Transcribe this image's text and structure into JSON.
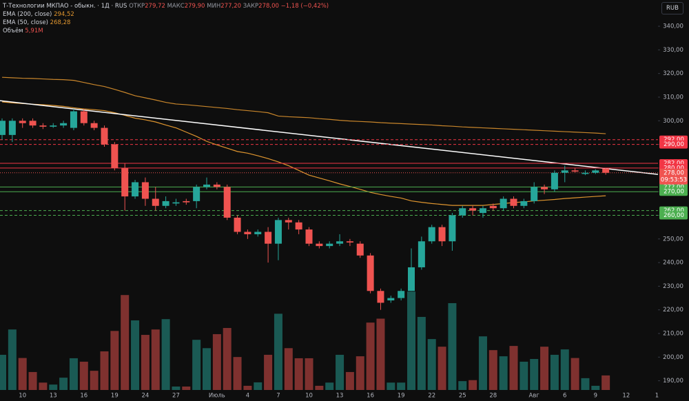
{
  "chart_data": {
    "type": "candlestick",
    "header": {
      "symbol": "Т-Технологии МКПАО - обыкн. · 1Д · RUS",
      "open_label": "ОТКР",
      "open": "279,72",
      "high_label": "МАКС",
      "high": "279,90",
      "low_label": "МИН",
      "low": "277,20",
      "close_label": "ЗАКР",
      "close": "278,00",
      "change": "−1,18 (−0,42%)"
    },
    "currency": "RUB",
    "up_color": "#26a69a",
    "down_color": "#ef5350",
    "categories": [
      null,
      null,
      "10",
      null,
      null,
      "13",
      null,
      null,
      "16",
      null,
      null,
      "19",
      null,
      null,
      "24",
      null,
      null,
      "27",
      null,
      null,
      null,
      "Июль",
      null,
      null,
      "4",
      null,
      null,
      "7",
      null,
      null,
      "10",
      null,
      null,
      "13",
      null,
      null,
      "16",
      null,
      null,
      "19",
      null,
      null,
      "22",
      null,
      null,
      "25",
      null,
      null,
      "28",
      null,
      null,
      null,
      "Авг",
      null,
      null,
      "6",
      null,
      null,
      "9",
      null,
      null,
      "12",
      null,
      null,
      "1"
    ],
    "open": [
      294,
      294,
      300,
      300,
      298,
      297.5,
      298,
      297,
      304,
      299,
      297,
      290,
      280,
      268,
      274,
      267,
      264,
      265,
      266,
      266,
      272,
      273,
      272,
      259,
      253,
      252,
      253,
      248,
      258,
      257,
      254,
      248,
      247,
      248,
      249,
      248,
      243,
      228,
      224,
      225,
      228,
      238,
      249,
      255,
      249,
      260,
      263,
      261,
      264,
      263,
      267,
      264,
      266,
      272,
      271,
      278,
      279,
      277.5,
      278,
      279.72,
      null,
      null,
      null,
      null,
      null
    ],
    "high": [
      301,
      301,
      301,
      301,
      299,
      299,
      300,
      305,
      305,
      300,
      298,
      291,
      282,
      275,
      276,
      272,
      268,
      267,
      267,
      273,
      276,
      274,
      273,
      260,
      254,
      254,
      255,
      259,
      259,
      258,
      255,
      249,
      249,
      252,
      250,
      249,
      244,
      229,
      226,
      229,
      246,
      251,
      256,
      256,
      261,
      264,
      264,
      264,
      265,
      268,
      268,
      267,
      274,
      273,
      279,
      281,
      280,
      279,
      279.5,
      279.9,
      null,
      null,
      null,
      null,
      null
    ],
    "low": [
      292,
      291,
      297,
      297,
      296.5,
      297,
      297,
      296,
      298,
      296,
      289,
      279,
      262,
      267,
      264,
      262,
      263,
      264,
      264.5,
      263,
      271,
      271,
      258,
      252,
      250,
      251,
      240,
      241,
      254,
      252,
      247,
      246,
      246,
      247,
      247,
      242,
      227,
      220,
      223,
      224,
      228,
      237,
      248,
      247,
      245,
      259,
      260,
      259,
      262,
      262,
      263,
      263,
      265,
      269,
      270,
      274,
      278,
      277,
      277.5,
      277.2,
      null,
      null,
      null,
      null,
      null
    ],
    "close": [
      300,
      300,
      299,
      298,
      297.5,
      298,
      299,
      304,
      299,
      297,
      290,
      280,
      268,
      274,
      267,
      264,
      266,
      265.5,
      265.5,
      272,
      273,
      272,
      259,
      253,
      252,
      253,
      248,
      258,
      257,
      254,
      248,
      247,
      248,
      249,
      248.5,
      243,
      228,
      223,
      225,
      228,
      238,
      249,
      255,
      249,
      260,
      263,
      262,
      263,
      263,
      267,
      264,
      266,
      272,
      271,
      278,
      279,
      278.5,
      278,
      279,
      278,
      null,
      null,
      null,
      null,
      null
    ],
    "volume": {
      "name": "Объём",
      "value_label": "5,91M",
      "values": [
        14.3,
        24.6,
        13,
        7.3,
        3,
        2.2,
        5,
        12.9,
        11.5,
        7.8,
        15.7,
        24,
        38.6,
        28.3,
        22.4,
        24.6,
        28.8,
        1.4,
        1.4,
        20.4,
        17,
        22.7,
        25.2,
        13.4,
        1.7,
        3.1,
        14.3,
        31,
        17,
        12.9,
        12.9,
        1.7,
        3,
        14.3,
        7.3,
        13.7,
        27.4,
        29,
        3,
        3,
        40,
        29.7,
        20.7,
        17.6,
        35.3,
        3.6,
        4,
        21.8,
        16.2,
        13.7,
        17.9,
        11.5,
        12.6,
        17.6,
        14.3,
        16.5,
        13,
        4.8,
        1.7,
        5.91,
        null,
        null,
        null,
        null,
        null
      ]
    },
    "series": [
      {
        "name": "EMA (200, close)",
        "value_label": "294,52",
        "color": "#c9862b",
        "values": [
          318.4,
          318.2,
          318,
          317.9,
          317.7,
          317.5,
          317.4,
          317.1,
          316.2,
          315.3,
          314.5,
          313.3,
          312,
          310.6,
          309.7,
          308.8,
          307.8,
          307.1,
          306.8,
          306.4,
          306,
          305.6,
          305.2,
          304.7,
          304.3,
          303.9,
          303.4,
          302,
          301.7,
          301.5,
          301.3,
          300.9,
          300.6,
          300.2,
          299.9,
          299.7,
          299.5,
          299.2,
          299,
          298.8,
          298.6,
          298.4,
          298.2,
          297.9,
          297.7,
          297.4,
          297.2,
          297,
          296.8,
          296.6,
          296.4,
          296.2,
          296,
          295.8,
          295.6,
          295.4,
          295.2,
          295,
          294.8,
          294.52,
          null,
          null,
          null,
          null,
          null
        ]
      },
      {
        "name": "EMA (50, close)",
        "value_label": "268,28",
        "color": "#e0962f",
        "values": [
          308,
          307.6,
          307.3,
          307,
          306.8,
          306.5,
          306.1,
          305.5,
          305,
          304.7,
          304.3,
          303.4,
          302.3,
          301.1,
          300.4,
          299.5,
          298.2,
          297,
          295.2,
          293.4,
          291.3,
          289.8,
          288.4,
          287,
          286.3,
          285.2,
          284,
          282.6,
          281,
          279,
          277,
          275.8,
          274.6,
          273.3,
          272.2,
          271,
          269.7,
          268.8,
          268,
          267.3,
          266.1,
          265.5,
          265,
          264.6,
          264.2,
          264.2,
          264.2,
          264.2,
          264.6,
          265,
          265.4,
          265.7,
          266.1,
          266.4,
          266.7,
          267.1,
          267.4,
          267.7,
          268,
          268.28,
          null,
          null,
          null,
          null,
          null
        ]
      }
    ],
    "trendline": {
      "color": "#ffffff",
      "values": [
        308.5,
        277.3
      ]
    },
    "levels": [
      {
        "value": 292,
        "label": "292,00",
        "color": "#f23645",
        "style": "dashed"
      },
      {
        "value": 290,
        "label": "290,00",
        "color": "#f23645",
        "style": "dashed"
      },
      {
        "value": 282,
        "label": "282,00",
        "color": "#f23645",
        "style": "solid"
      },
      {
        "value": 280,
        "label": "280,00",
        "color": "#f23645",
        "style": "solid"
      },
      {
        "value": 272,
        "label": "272,00",
        "color": "#4caf50",
        "style": "solid"
      },
      {
        "value": 270,
        "label": "270,00",
        "color": "#4caf50",
        "style": "solid"
      },
      {
        "value": 262,
        "label": "262,00",
        "color": "#4caf50",
        "style": "dashed"
      },
      {
        "value": 260,
        "label": "260,00",
        "color": "#4caf50",
        "style": "dashed"
      }
    ],
    "price_tag": {
      "value": 278,
      "label": "278,00",
      "countdown": "09:53:53",
      "color": "#ef5350"
    },
    "ylim": [
      186.1,
      351.1
    ],
    "yticks": [
      {
        "value": 190,
        "label": "190,00"
      },
      {
        "value": 200,
        "label": "200,00"
      },
      {
        "value": 210,
        "label": "210,00"
      },
      {
        "value": 220,
        "label": "220,00"
      },
      {
        "value": 230,
        "label": "230,00"
      },
      {
        "value": 240,
        "label": "240,00"
      },
      {
        "value": 250,
        "label": "250,00"
      },
      {
        "value": 260,
        "label": "260,00"
      },
      {
        "value": 270,
        "label": "270,00"
      },
      {
        "value": 280,
        "label": "280,00"
      },
      {
        "value": 290,
        "label": "290,00"
      },
      {
        "value": 300,
        "label": "300,00"
      },
      {
        "value": 310,
        "label": "310,00"
      },
      {
        "value": 320,
        "label": "320,00"
      },
      {
        "value": 330,
        "label": "330,00"
      },
      {
        "value": 340,
        "label": "340,00"
      }
    ],
    "grid": false
  }
}
